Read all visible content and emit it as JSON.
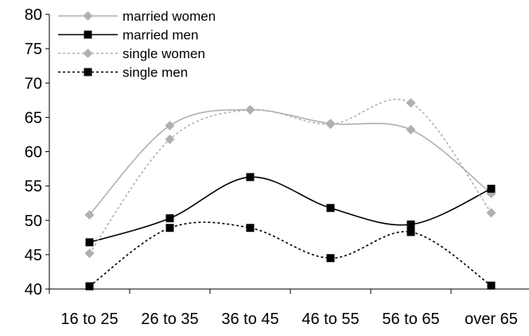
{
  "chart_data": {
    "type": "line",
    "title": "",
    "xlabel": "",
    "ylabel": "",
    "categories": [
      "16 to 25",
      "26 to 35",
      "36 to 45",
      "46 to 55",
      "56 to 65",
      "over 65"
    ],
    "ylim": [
      40,
      80
    ],
    "yticks": [
      40,
      45,
      50,
      55,
      60,
      65,
      70,
      75,
      80
    ],
    "grid": false,
    "smoothed": true,
    "legend_position": "top-left",
    "series": [
      {
        "name": "married women",
        "values": [
          50.8,
          63.8,
          66.1,
          64.1,
          63.2,
          53.9
        ],
        "color": "#b0b0b0",
        "dash": "solid",
        "marker": "diamond"
      },
      {
        "name": "married men",
        "values": [
          46.8,
          50.3,
          56.3,
          51.8,
          49.4,
          54.6
        ],
        "color": "#000000",
        "dash": "solid",
        "marker": "square"
      },
      {
        "name": "single women",
        "values": [
          45.2,
          61.8,
          66.1,
          64.0,
          67.1,
          51.1
        ],
        "color": "#b0b0b0",
        "dash": "dotted",
        "marker": "diamond"
      },
      {
        "name": "single men",
        "values": [
          40.4,
          48.9,
          48.9,
          44.5,
          48.3,
          40.5
        ],
        "color": "#000000",
        "dash": "dotted",
        "marker": "square"
      }
    ]
  }
}
